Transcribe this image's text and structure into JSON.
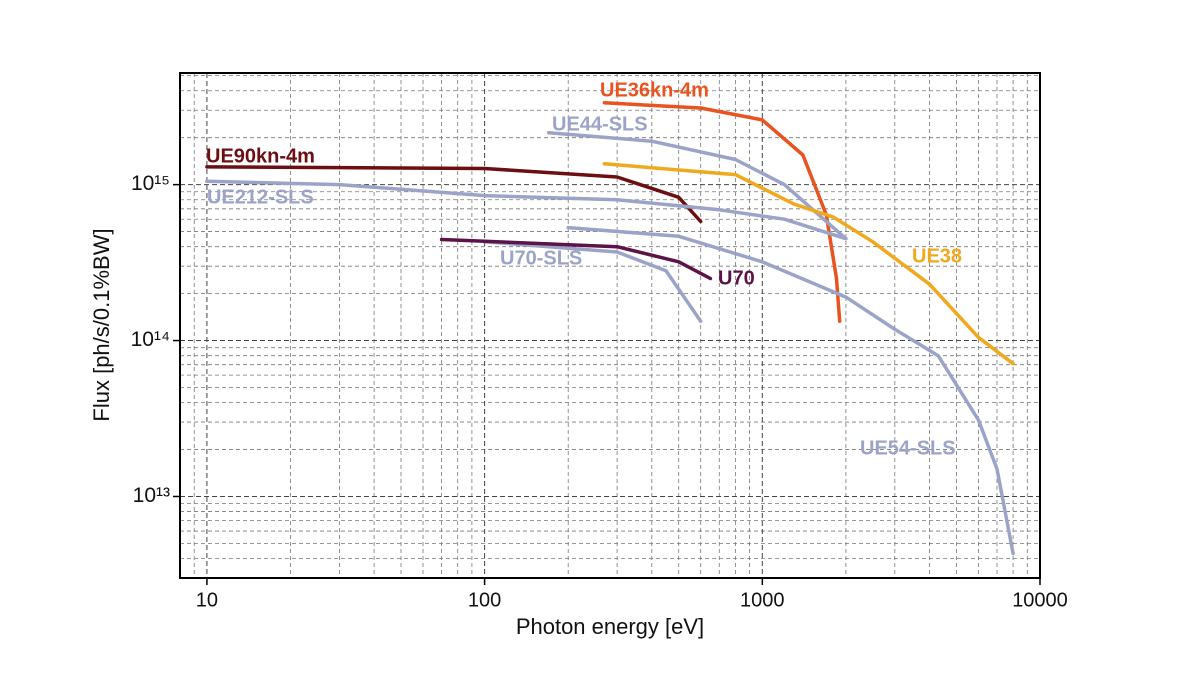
{
  "chart_data": {
    "type": "line",
    "xlabel": "Photon energy [eV]",
    "ylabel": "Flux [ph/s/0.1%BW]",
    "xscale": "log",
    "yscale": "log",
    "grid": true,
    "xlim": [
      8,
      10000
    ],
    "xticks": [
      10,
      100,
      1000,
      10000
    ],
    "ylim": [
      3000000000000.0,
      5200000000000000.0
    ],
    "yticks": [
      {
        "value": 10000000000000.0,
        "label": "10¹³"
      },
      {
        "value": 100000000000000.0,
        "label": "10¹⁴"
      },
      {
        "value": 1000000000000000.0,
        "label": "10¹⁵"
      }
    ],
    "series": [
      {
        "name": "UE36kn-4m",
        "color": "#e8531f",
        "x": [
          270,
          600,
          1000,
          1400,
          1700,
          1850,
          1900
        ],
        "values": [
          3350000000000000.0,
          3100000000000000.0,
          2600000000000000.0,
          1550000000000000.0,
          640000000000000.0,
          250000000000000.0,
          133000000000000.0
        ]
      },
      {
        "name": "UE44-SLS",
        "color": "#9ca3c8",
        "x": [
          170,
          400,
          800,
          1200,
          2000
        ],
        "values": [
          2150000000000000.0,
          1900000000000000.0,
          1450000000000000.0,
          1000000000000000.0,
          450000000000000.0
        ]
      },
      {
        "name": "UE90kn-4m",
        "color": "#6b0f12",
        "x": [
          10,
          100,
          300,
          500,
          600
        ],
        "values": [
          1300000000000000.0,
          1270000000000000.0,
          1120000000000000.0,
          830000000000000.0,
          580000000000000.0
        ]
      },
      {
        "name": "UE212-SLS",
        "color": "#9ca3c8",
        "x": [
          10,
          30,
          100,
          300,
          700,
          1200,
          2000
        ],
        "values": [
          1050000000000000.0,
          1000000000000000.0,
          850000000000000.0,
          800000000000000.0,
          690000000000000.0,
          600000000000000.0,
          450000000000000.0
        ]
      },
      {
        "name": "U70-SLS",
        "color": "#9ca3c8",
        "x": [
          100,
          300,
          450,
          600
        ],
        "values": [
          430000000000000.0,
          370000000000000.0,
          280000000000000.0,
          133000000000000.0
        ]
      },
      {
        "name": "U70",
        "color": "#5c1347",
        "x": [
          70,
          300,
          500,
          650
        ],
        "values": [
          445000000000000.0,
          400000000000000.0,
          320000000000000.0,
          250000000000000.0
        ]
      },
      {
        "name": "UE38",
        "color": "#f0a81c",
        "x": [
          270,
          800,
          1300,
          1800,
          2500,
          4000,
          6000,
          8000
        ],
        "values": [
          1360000000000000.0,
          1160000000000000.0,
          750000000000000.0,
          620000000000000.0,
          430000000000000.0,
          230000000000000.0,
          105000000000000.0,
          71000000000000.0
        ]
      },
      {
        "name": "UE54-SLS",
        "color": "#9ca3c8",
        "x": [
          200,
          500,
          1000,
          2000,
          3000,
          4300,
          6000,
          7000,
          8000
        ],
        "values": [
          530000000000000.0,
          466000000000000.0,
          320000000000000.0,
          190000000000000.0,
          118000000000000.0,
          80000000000000.0,
          31000000000000.0,
          15000000000000.0,
          4300000000000.0
        ]
      }
    ]
  }
}
